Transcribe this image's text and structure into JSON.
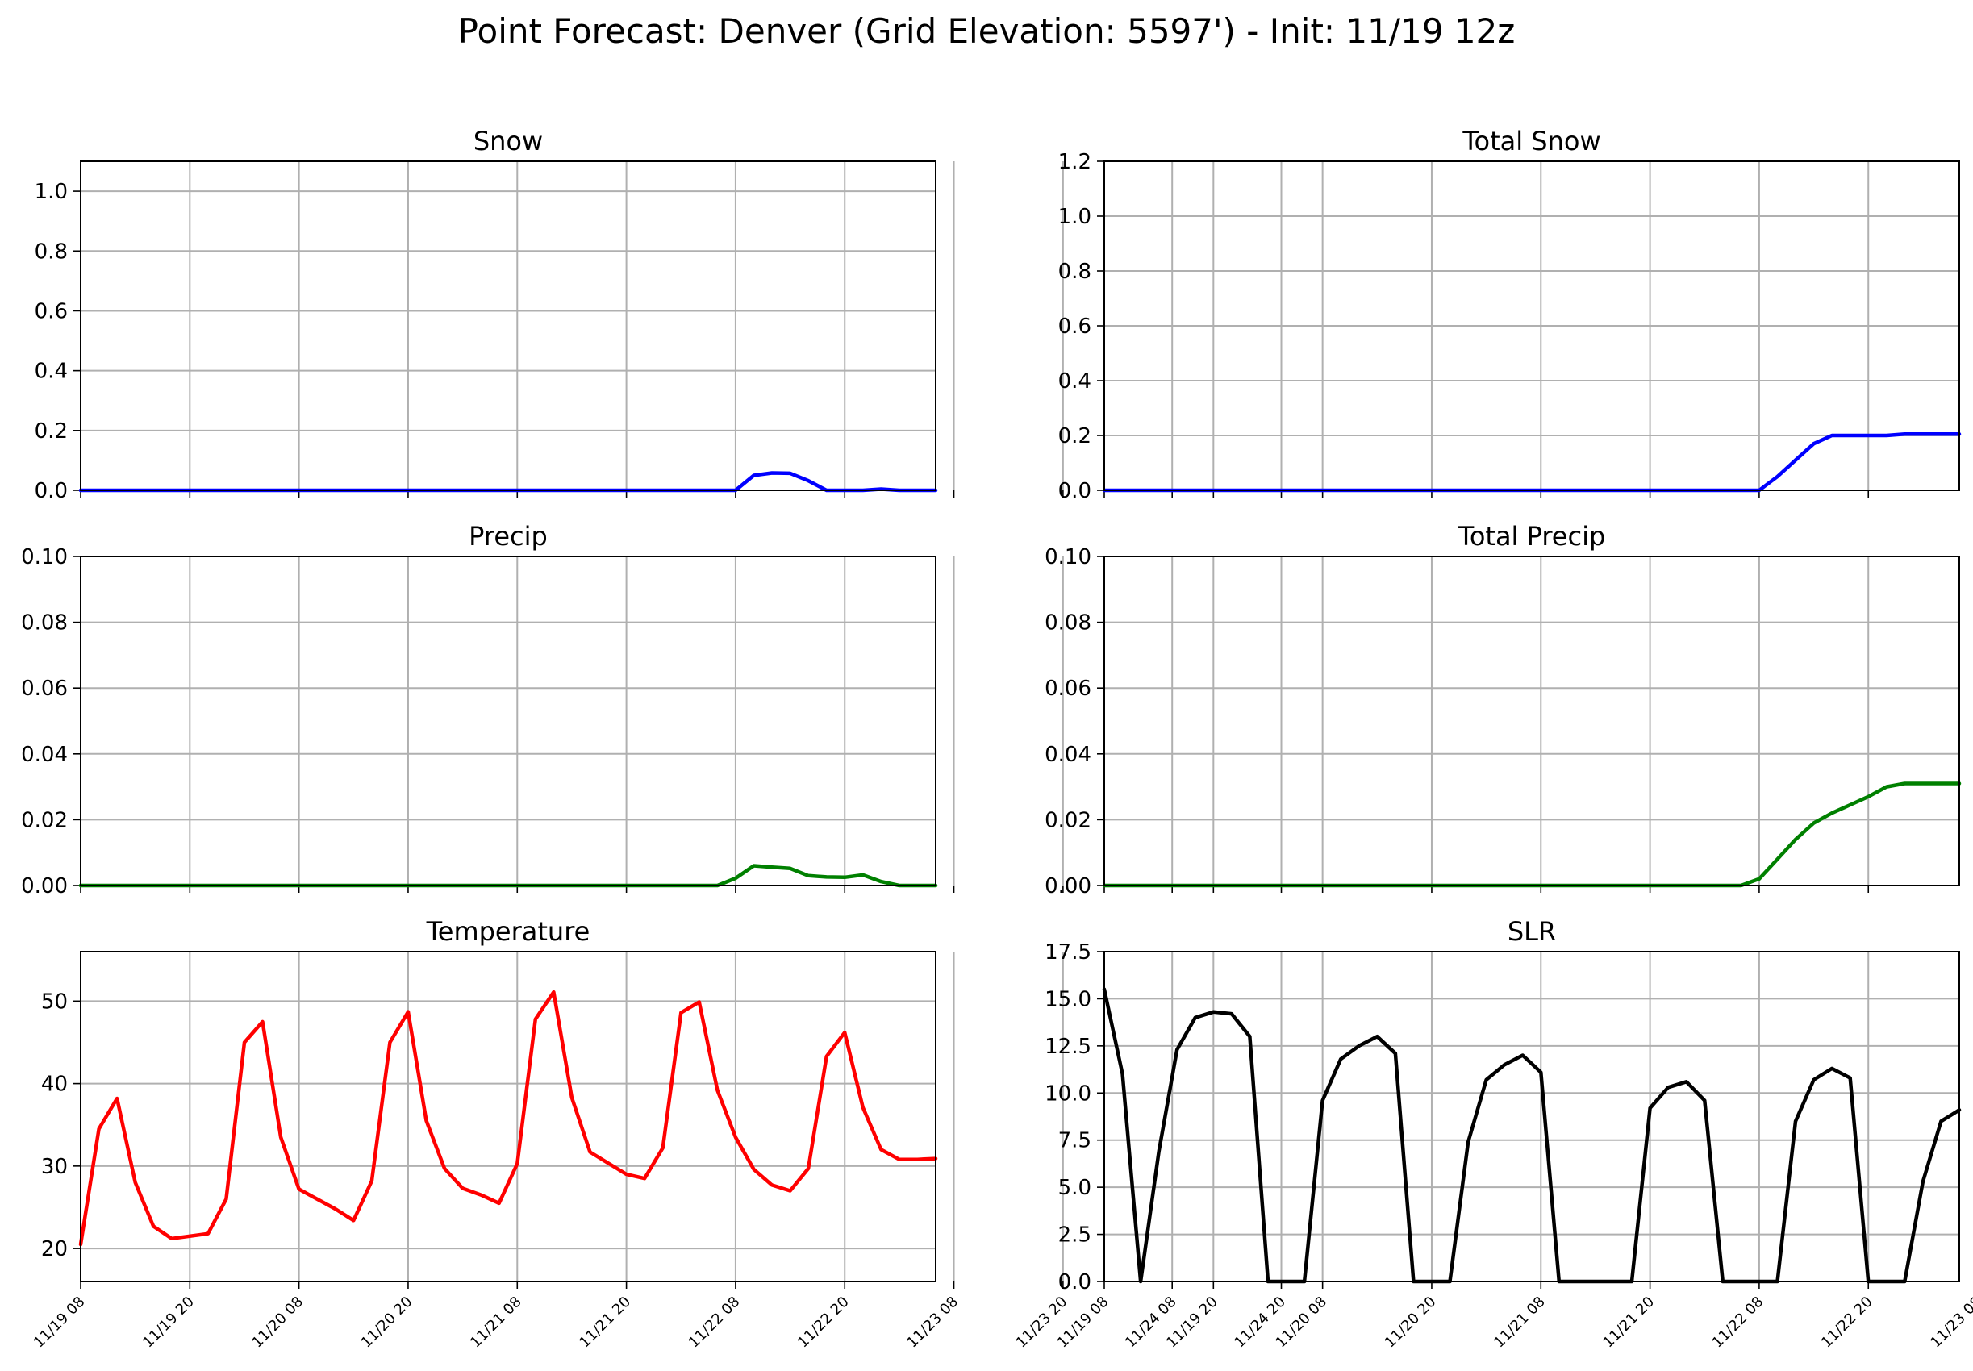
{
  "title": "Point Forecast: Denver (Grid Elevation: 5597') - Init: 11/19 12z",
  "x_tick_labels": [
    "11/19 08",
    "11/19 20",
    "11/20 08",
    "11/20 20",
    "11/21 08",
    "11/21 20",
    "11/22 08",
    "11/22 20",
    "11/23 08",
    "11/23 20",
    "11/24 08",
    "11/24 20"
  ],
  "chart_data": [
    {
      "type": "line",
      "title": "Snow",
      "color": "#0000ff",
      "grid": true,
      "x_unit": "hours since 11/19 08",
      "xlim": [
        0,
        141
      ],
      "ylim": [
        0,
        1.1
      ],
      "yticks": [
        "0.0",
        "0.2",
        "0.4",
        "0.6",
        "0.8",
        "1.0"
      ],
      "ytick_values": [
        0,
        0.2,
        0.4,
        0.6,
        0.8,
        1.0
      ],
      "x": [
        0,
        108,
        111,
        114,
        117,
        120,
        123,
        126,
        129,
        132,
        135,
        138,
        141
      ],
      "y": [
        0,
        0,
        0.05,
        0.058,
        0.057,
        0.032,
        0,
        0,
        0,
        0.004,
        0,
        0,
        0
      ]
    },
    {
      "type": "line",
      "title": "Total Snow",
      "color": "#0000ff",
      "grid": true,
      "xlim": [
        0,
        141
      ],
      "ylim": [
        0,
        1.2
      ],
      "yticks": [
        "0.0",
        "0.2",
        "0.4",
        "0.6",
        "0.8",
        "1.0",
        "1.2"
      ],
      "ytick_values": [
        0,
        0.2,
        0.4,
        0.6,
        0.8,
        1.0,
        1.2
      ],
      "x": [
        0,
        108,
        111,
        114,
        117,
        120,
        123,
        126,
        129,
        132,
        135,
        138,
        141
      ],
      "y": [
        0,
        0,
        0.05,
        0.11,
        0.17,
        0.2,
        0.2,
        0.2,
        0.2,
        0.205,
        0.205,
        0.205,
        0.205
      ]
    },
    {
      "type": "line",
      "title": "Precip",
      "color": "#008000",
      "grid": true,
      "xlim": [
        0,
        141
      ],
      "ylim": [
        0,
        0.1
      ],
      "yticks": [
        "0.00",
        "0.02",
        "0.04",
        "0.06",
        "0.08",
        "0.10"
      ],
      "ytick_values": [
        0,
        0.02,
        0.04,
        0.06,
        0.08,
        0.1
      ],
      "x": [
        0,
        105,
        108,
        111,
        114,
        117,
        120,
        123,
        126,
        129,
        132,
        135,
        138,
        141
      ],
      "y": [
        0,
        0,
        0.0022,
        0.006,
        0.0056,
        0.0052,
        0.003,
        0.0026,
        0.0025,
        0.0032,
        0.0012,
        0,
        0,
        0
      ]
    },
    {
      "type": "line",
      "title": "Total Precip",
      "color": "#008000",
      "grid": true,
      "xlim": [
        0,
        141
      ],
      "ylim": [
        0,
        0.1
      ],
      "yticks": [
        "0.00",
        "0.02",
        "0.04",
        "0.06",
        "0.08",
        "0.10"
      ],
      "ytick_values": [
        0,
        0.02,
        0.04,
        0.06,
        0.08,
        0.1
      ],
      "x": [
        0,
        105,
        108,
        111,
        114,
        117,
        120,
        123,
        126,
        129,
        132,
        135,
        138,
        141
      ],
      "y": [
        0,
        0,
        0.002,
        0.008,
        0.014,
        0.019,
        0.022,
        0.0245,
        0.027,
        0.03,
        0.031,
        0.031,
        0.031,
        0.031
      ]
    },
    {
      "type": "line",
      "title": "Temperature",
      "color": "#ff0000",
      "grid": true,
      "xlim": [
        0,
        141
      ],
      "ylim": [
        16,
        56
      ],
      "yticks": [
        "20",
        "30",
        "40",
        "50"
      ],
      "ytick_values": [
        20,
        30,
        40,
        50
      ],
      "x": [
        0,
        3,
        6,
        9,
        12,
        15,
        21,
        24,
        27,
        30,
        33,
        36,
        42,
        45,
        48,
        51,
        54,
        57,
        60,
        63,
        66,
        69,
        72,
        75,
        78,
        81,
        84,
        90,
        93,
        96,
        99,
        102,
        105,
        108,
        111,
        114,
        117,
        120,
        123,
        126,
        129,
        132,
        135,
        138,
        141
      ],
      "y": [
        20.5,
        34.5,
        38.2,
        28,
        22.7,
        21.2,
        21.8,
        26,
        45,
        47.5,
        33.5,
        27.2,
        24.8,
        23.4,
        28.2,
        45,
        48.7,
        35.5,
        29.7,
        27.3,
        26.5,
        25.5,
        30.3,
        47.8,
        51.1,
        38.3,
        31.7,
        29,
        28.5,
        32.2,
        48.6,
        49.9,
        39.2,
        33.5,
        29.6,
        27.7,
        27,
        29.7,
        43.3,
        46.2,
        37.1,
        32,
        30.8,
        30.8,
        30.9
      ]
    },
    {
      "type": "line",
      "title": "SLR",
      "color": "#000000",
      "grid": true,
      "xlim": [
        0,
        141
      ],
      "ylim": [
        0,
        17.5
      ],
      "yticks": [
        "0.0",
        "2.5",
        "5.0",
        "7.5",
        "10.0",
        "12.5",
        "15.0",
        "17.5"
      ],
      "ytick_values": [
        0,
        2.5,
        5,
        7.5,
        10,
        12.5,
        15,
        17.5
      ],
      "x": [
        0,
        3,
        6,
        9,
        12,
        15,
        18,
        21,
        24,
        27,
        30,
        33,
        36,
        39,
        42,
        45,
        48,
        51,
        54,
        57,
        60,
        63,
        66,
        69,
        72,
        75,
        78,
        81,
        84,
        87,
        90,
        93,
        96,
        99,
        102,
        105,
        108,
        111,
        114,
        117,
        120,
        123,
        126,
        129,
        132,
        135,
        138,
        141
      ],
      "y": [
        15.5,
        11,
        0,
        6.9,
        12.3,
        14,
        14.3,
        14.2,
        13,
        0,
        0,
        0,
        9.6,
        11.8,
        12.5,
        13,
        12.1,
        0,
        0,
        0,
        7.4,
        10.7,
        11.5,
        12,
        11.1,
        0,
        0,
        0,
        0,
        0,
        9.2,
        10.3,
        10.6,
        9.6,
        0,
        0,
        0,
        0,
        8.5,
        10.7,
        11.3,
        10.8,
        0,
        0,
        0,
        5.3,
        8.5,
        9.1
      ]
    }
  ]
}
